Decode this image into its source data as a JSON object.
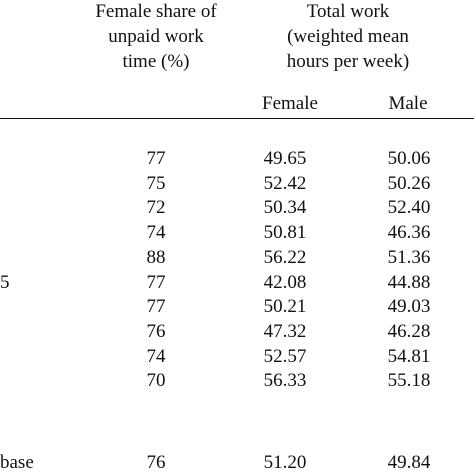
{
  "header": {
    "share_col": [
      "Female share of",
      "unpaid work",
      "time (%)"
    ],
    "total_col": [
      "Total work",
      "(weighted mean",
      "hours per week)"
    ],
    "female_label": "Female",
    "male_label": "Male"
  },
  "rows": [
    {
      "label": "",
      "share": "77",
      "female": "49.65",
      "male": "50.06"
    },
    {
      "label": "",
      "share": "75",
      "female": "52.42",
      "male": "50.26"
    },
    {
      "label": "",
      "share": "72",
      "female": "50.34",
      "male": "52.40"
    },
    {
      "label": "",
      "share": "74",
      "female": "50.81",
      "male": "46.36"
    },
    {
      "label": "",
      "share": "88",
      "female": "56.22",
      "male": "51.36"
    },
    {
      "label": "5",
      "share": "77",
      "female": "42.08",
      "male": "44.88"
    },
    {
      "label": "",
      "share": "77",
      "female": "50.21",
      "male": "49.03"
    },
    {
      "label": "",
      "share": "76",
      "female": "47.32",
      "male": "46.28"
    },
    {
      "label": "",
      "share": "74",
      "female": "52.57",
      "male": "54.81"
    },
    {
      "label": "",
      "share": "70",
      "female": "56.33",
      "male": "55.18"
    }
  ],
  "pooled_row": {
    "label": "base",
    "share": "76",
    "female": "51.20",
    "male": "49.84"
  }
}
